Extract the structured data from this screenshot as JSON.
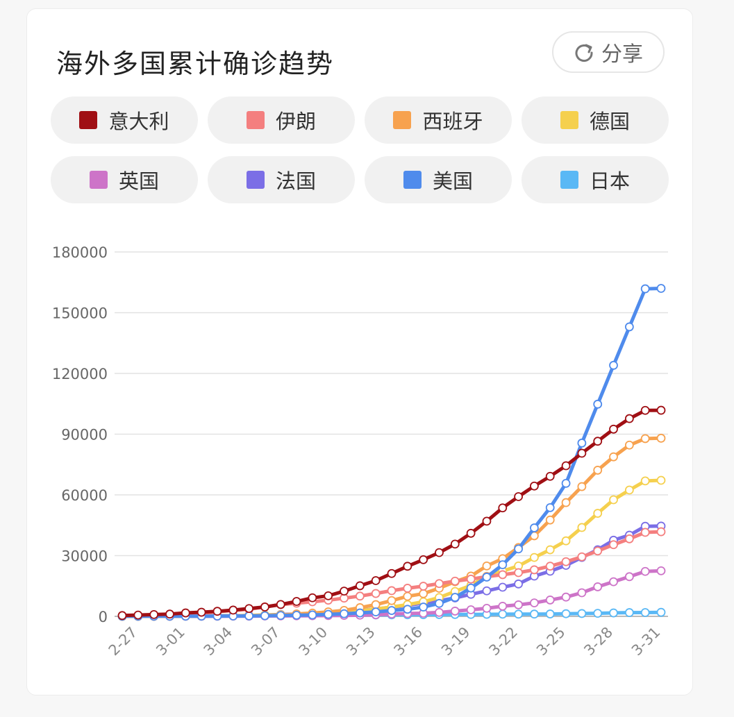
{
  "header": {
    "title": "海外多国累计确诊趋势",
    "share_label": "分享",
    "share_icon": "refresh-share-icon"
  },
  "chart_data": {
    "type": "line",
    "title": "海外多国累计确诊趋势",
    "ylim": [
      0,
      180000
    ],
    "yticks": [
      "180000",
      "150000",
      "120000",
      "90000",
      "60000",
      "30000",
      "0"
    ],
    "ytick_values": [
      180000,
      150000,
      120000,
      90000,
      60000,
      30000,
      0
    ],
    "xtick_labels": [
      "2-27",
      "3-01",
      "3-04",
      "3-07",
      "3-10",
      "3-13",
      "3-16",
      "3-19",
      "3-22",
      "3-25",
      "3-28",
      "3-31"
    ],
    "xtick_indices": [
      1,
      4,
      7,
      10,
      13,
      16,
      19,
      22,
      25,
      28,
      31,
      34
    ],
    "x": [
      "2-26",
      "2-27",
      "2-28",
      "2-29",
      "3-01",
      "3-02",
      "3-03",
      "3-04",
      "3-05",
      "3-06",
      "3-07",
      "3-08",
      "3-09",
      "3-10",
      "3-11",
      "3-12",
      "3-13",
      "3-14",
      "3-15",
      "3-16",
      "3-17",
      "3-18",
      "3-19",
      "3-20",
      "3-21",
      "3-22",
      "3-23",
      "3-24",
      "3-25",
      "3-26",
      "3-27",
      "3-28",
      "3-29",
      "3-30",
      "3-31"
    ],
    "series": [
      {
        "name": "日本",
        "color": "#5ab8f5",
        "values": [
          160,
          190,
          210,
          230,
          240,
          250,
          270,
          310,
          340,
          370,
          420,
          460,
          500,
          550,
          600,
          640,
          680,
          720,
          780,
          820,
          880,
          930,
          960,
          1010,
          1060,
          1090,
          1130,
          1180,
          1310,
          1400,
          1500,
          1700,
          1860,
          1890,
          2000
        ]
      },
      {
        "name": "英国",
        "color": "#cd74c8",
        "values": [
          10,
          15,
          20,
          25,
          35,
          40,
          50,
          85,
          115,
          165,
          210,
          275,
          320,
          380,
          460,
          590,
          800,
          1140,
          1390,
          1550,
          1950,
          2600,
          3260,
          3980,
          5000,
          5680,
          6650,
          8080,
          9530,
          11660,
          14600,
          17100,
          19600,
          22200,
          22500
        ]
      },
      {
        "name": "法国",
        "color": "#7b6ee6",
        "values": [
          20,
          40,
          60,
          100,
          130,
          190,
          210,
          290,
          420,
          650,
          950,
          1130,
          1410,
          1780,
          2280,
          2880,
          3660,
          4500,
          5400,
          6600,
          7700,
          9100,
          10900,
          12600,
          14400,
          16000,
          19900,
          22300,
          25200,
          29100,
          32900,
          37600,
          40100,
          44500,
          44600
        ]
      },
      {
        "name": "德国",
        "color": "#f5d04e",
        "values": [
          30,
          50,
          60,
          80,
          130,
          160,
          200,
          260,
          400,
          690,
          800,
          1000,
          1180,
          1560,
          1900,
          2750,
          3680,
          4600,
          5800,
          7200,
          9300,
          12300,
          15300,
          19800,
          22400,
          24900,
          29100,
          32900,
          37300,
          43900,
          50900,
          57600,
          62400,
          66900,
          67200
        ]
      },
      {
        "name": "西班牙",
        "color": "#f7a24f",
        "values": [
          10,
          20,
          30,
          45,
          80,
          115,
          165,
          225,
          280,
          400,
          600,
          1200,
          1600,
          2200,
          2950,
          4300,
          5800,
          7800,
          9900,
          11200,
          13900,
          17100,
          19900,
          24900,
          28500,
          34000,
          39800,
          47600,
          56200,
          64100,
          72200,
          78800,
          84600,
          87800,
          88000
        ]
      },
      {
        "name": "伊朗",
        "color": "#f47f7f",
        "values": [
          140,
          240,
          390,
          590,
          980,
          1500,
          2300,
          2900,
          3500,
          4700,
          5800,
          6500,
          7200,
          8000,
          9000,
          10000,
          11300,
          12700,
          13900,
          14900,
          16200,
          17400,
          18400,
          19600,
          20600,
          21600,
          23000,
          24800,
          27000,
          29400,
          32300,
          35400,
          38300,
          41500,
          41800
        ]
      },
      {
        "name": "美国",
        "color": "#4f8bec",
        "values": [
          60,
          60,
          70,
          70,
          80,
          100,
          120,
          160,
          220,
          310,
          430,
          550,
          700,
          1000,
          1300,
          1700,
          2200,
          2900,
          3500,
          4600,
          6400,
          9400,
          14000,
          19400,
          25500,
          33300,
          43700,
          53700,
          65700,
          85600,
          104800,
          124000,
          143000,
          161800,
          162000
        ]
      },
      {
        "name": "意大利",
        "color": "#a00f14",
        "values": [
          400,
          650,
          890,
          1130,
          1700,
          2040,
          2500,
          3100,
          3860,
          4640,
          5880,
          7380,
          9170,
          10150,
          12460,
          15110,
          17660,
          21160,
          24750,
          27980,
          31510,
          35710,
          41040,
          47020,
          53580,
          59140,
          64380,
          69180,
          74390,
          80590,
          86500,
          92470,
          97690,
          101740,
          101800
        ]
      }
    ]
  },
  "legend": [
    {
      "label": "意大利",
      "color": "#a00f14"
    },
    {
      "label": "伊朗",
      "color": "#f47f7f"
    },
    {
      "label": "西班牙",
      "color": "#f7a24f"
    },
    {
      "label": "德国",
      "color": "#f5d04e"
    },
    {
      "label": "英国",
      "color": "#cd74c8"
    },
    {
      "label": "法国",
      "color": "#7b6ee6"
    },
    {
      "label": "美国",
      "color": "#4f8bec"
    },
    {
      "label": "日本",
      "color": "#5ab8f5"
    }
  ]
}
